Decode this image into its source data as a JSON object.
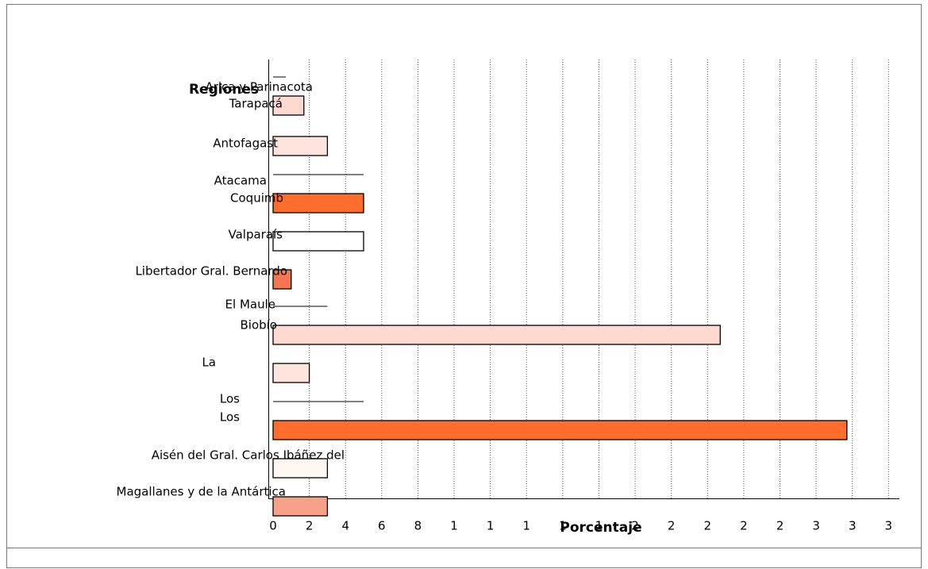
{
  "chart_data": {
    "type": "bar",
    "orientation": "horizontal",
    "ylabel": "Regiones",
    "xlabel": "Porcentaje",
    "categories": [
      "Arica y Parinacota",
      "Tarapacá",
      "Antofagast",
      "Atacama",
      "Coquimb",
      "Valparaís",
      "Libertador Gral. Bernardo",
      "El Maule",
      "Biobío",
      "La",
      "Los",
      "Los",
      "Aisén del Gral. Carlos Ibáñez del",
      "Magallanes y de la Antártica"
    ],
    "values": [
      0.7,
      1.7,
      3,
      5,
      5,
      5,
      1,
      3,
      24.7,
      2,
      5,
      31.7,
      3,
      3
    ],
    "colors": [
      null,
      "#fdd9d0",
      "#fde4dc",
      null,
      "#ff6d2d",
      "#ffffff",
      "#f5774f",
      null,
      "#fdd9d0",
      "#fde4dc",
      null,
      "#ff6d2d",
      "#fff7f4",
      "#f8a08a"
    ],
    "xlim": [
      0,
      34.6
    ],
    "xticks": [
      0,
      2,
      4,
      6,
      8,
      {
        "value": 10,
        "label": "1"
      },
      {
        "value": 12,
        "label": "1"
      },
      {
        "value": 14,
        "label": "1"
      },
      {
        "value": 16,
        "label": "1"
      },
      {
        "value": 18,
        "label": "1"
      },
      {
        "value": 20,
        "label": "2"
      },
      {
        "value": 22,
        "label": "2"
      },
      {
        "value": 24,
        "label": "2"
      },
      {
        "value": 26,
        "label": "2"
      },
      {
        "value": 28,
        "label": "2"
      },
      {
        "value": 30,
        "label": "3"
      },
      {
        "value": 32,
        "label": "3"
      },
      {
        "value": 34,
        "label": "3"
      }
    ],
    "grid": true
  }
}
